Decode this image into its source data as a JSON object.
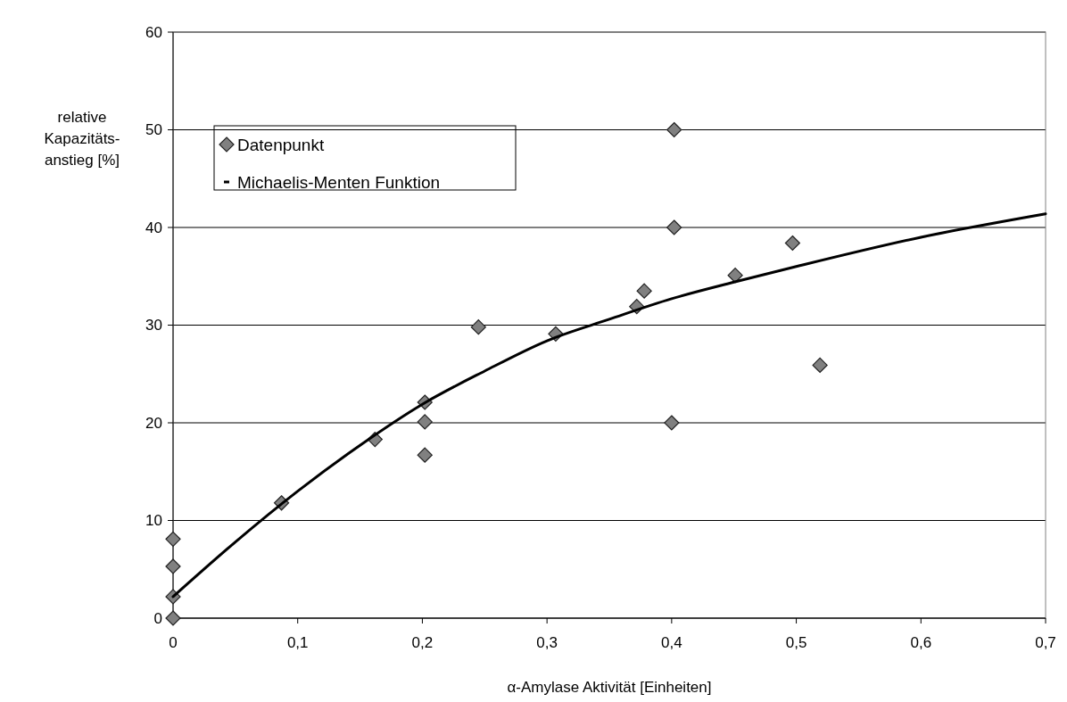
{
  "chart_data": {
    "type": "scatter",
    "xlabel": "α-Amylase Aktivität [Einheiten]",
    "ylabel": "relative Kapazitäts-anstieg [%]",
    "xlim": [
      0,
      0.7
    ],
    "xticks": [
      0,
      {
        "value": 0.1,
        "label": "0,1"
      },
      {
        "value": 0.2,
        "label": "0,2"
      },
      {
        "value": 0.3,
        "label": "0,3"
      },
      {
        "value": 0.4,
        "label": "0,4"
      },
      {
        "value": 0.5,
        "label": "0,5"
      },
      {
        "value": 0.6,
        "label": "0,6"
      },
      {
        "value": 0.7,
        "label": "0,7"
      }
    ],
    "ylim": [
      0,
      60
    ],
    "yticks": [
      0,
      10,
      20,
      30,
      40,
      50,
      60
    ],
    "grid": "y",
    "legend": "top left",
    "series": [
      {
        "name": "Datenpunkt",
        "type": "scatter",
        "marker": "diamond",
        "color": "#808080",
        "x": [
          0,
          0,
          0,
          0,
          0.087,
          0.162,
          0.202,
          0.202,
          0.202,
          0.245,
          0.307,
          0.372,
          0.378,
          0.402,
          0.402,
          0.4,
          0.451,
          0.497,
          0.519
        ],
        "values": [
          0,
          2.2,
          5.3,
          8.1,
          11.8,
          18.3,
          22.1,
          20.1,
          16.7,
          29.8,
          29.1,
          31.9,
          33.5,
          50,
          40,
          20,
          35.1,
          38.4,
          25.9
        ]
      },
      {
        "name": "Michaelis-Menten Funktion",
        "type": "line",
        "marker": "none",
        "line_style": "solid",
        "color": "#000000",
        "x": [
          0,
          0.05,
          0.1,
          0.15,
          0.2,
          0.25,
          0.3,
          0.35,
          0.4,
          0.45,
          0.5,
          0.6,
          0.7
        ],
        "values": [
          2.2,
          7.8,
          13.0,
          17.7,
          21.9,
          25.3,
          28.4,
          30.6,
          32.7,
          34.4,
          36.0,
          39.0,
          41.4
        ]
      }
    ]
  }
}
